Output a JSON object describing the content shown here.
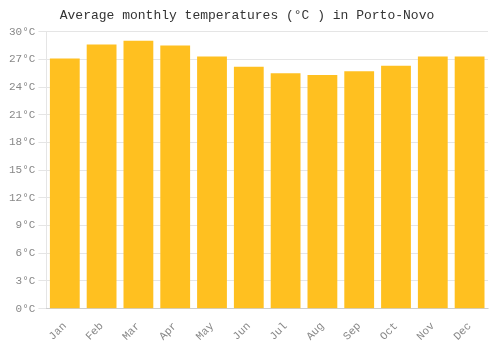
{
  "chart_data": {
    "type": "bar",
    "title": "Average monthly temperatures (°C ) in Porto-Novo",
    "categories": [
      "Jan",
      "Feb",
      "Mar",
      "Apr",
      "May",
      "Jun",
      "Jul",
      "Aug",
      "Sep",
      "Oct",
      "Nov",
      "Dec"
    ],
    "values": [
      27.1,
      28.6,
      29.0,
      28.5,
      27.3,
      26.2,
      25.5,
      25.3,
      25.7,
      26.3,
      27.3,
      27.3
    ],
    "color": "#FFC020",
    "ylim": [
      0,
      30
    ],
    "yticks": [
      {
        "value": 0,
        "label": "0°C"
      },
      {
        "value": 3,
        "label": "3°C"
      },
      {
        "value": 6,
        "label": "6°C"
      },
      {
        "value": 9,
        "label": "9°C"
      },
      {
        "value": 12,
        "label": "12°C"
      },
      {
        "value": 15,
        "label": "15°C"
      },
      {
        "value": 18,
        "label": "18°C"
      },
      {
        "value": 21,
        "label": "21°C"
      },
      {
        "value": 24,
        "label": "24°C"
      },
      {
        "value": 27,
        "label": "27°C"
      },
      {
        "value": 30,
        "label": "30°C"
      }
    ],
    "grid": true
  }
}
